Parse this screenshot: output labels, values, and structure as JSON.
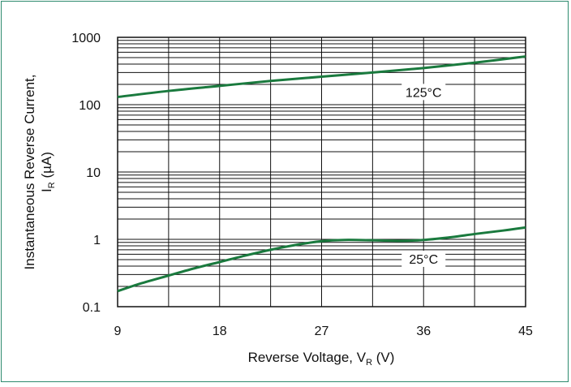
{
  "chart_data": {
    "type": "line",
    "xlabel": {
      "main": "Reverse Voltage, V",
      "sub": "R",
      "unit": " (V)"
    },
    "ylabel": {
      "line1": "Instantaneous Reverse Current,",
      "main": "I",
      "sub": "R",
      "unit": " (µA)"
    },
    "x_ticks": [
      9,
      18,
      27,
      36,
      45
    ],
    "y_ticks": [
      {
        "value": 0.1,
        "label": "0.1"
      },
      {
        "value": 1,
        "label": "1"
      },
      {
        "value": 10,
        "label": "10"
      },
      {
        "value": 100,
        "label": "100"
      },
      {
        "value": 1000,
        "label": "1000"
      }
    ],
    "xlim": [
      9,
      45
    ],
    "ylim": [
      0.1,
      1000
    ],
    "y_scale": "log",
    "x_minor_step": 4.5,
    "grid": true,
    "series": [
      {
        "name": "125°C",
        "color": "#1a7a3e",
        "x": [
          9,
          13.5,
          18,
          22.5,
          27,
          31.5,
          36,
          40.5,
          45
        ],
        "y": [
          130,
          160,
          190,
          225,
          260,
          300,
          350,
          420,
          520
        ]
      },
      {
        "name": "25°C",
        "color": "#1a7a3e",
        "x": [
          9,
          11,
          13.5,
          16,
          18,
          20,
          22.5,
          25,
          27,
          29,
          31.5,
          34,
          36,
          38.5,
          40.5,
          43,
          45
        ],
        "y": [
          0.17,
          0.22,
          0.29,
          0.38,
          0.46,
          0.56,
          0.7,
          0.84,
          0.94,
          0.98,
          0.97,
          0.95,
          0.98,
          1.08,
          1.2,
          1.35,
          1.5
        ]
      }
    ],
    "annotations": [
      {
        "text": "125°C",
        "x": 36,
        "y": 150
      },
      {
        "text": "25°C",
        "x": 36,
        "y": 0.5
      }
    ]
  }
}
